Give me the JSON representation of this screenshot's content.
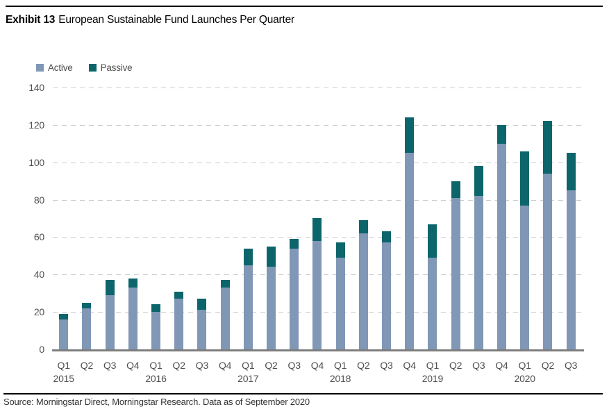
{
  "header": {
    "exhibit_label": "Exhibit 13",
    "title": "European Sustainable Fund Launches Per Quarter"
  },
  "legend": {
    "items": [
      {
        "label": "Active",
        "color": "#8097B5"
      },
      {
        "label": "Passive",
        "color": "#0B656B"
      }
    ]
  },
  "footer": {
    "source": "Source: Morningstar Direct, Morningstar Research. Data as of September 2020"
  },
  "chart_data": {
    "type": "bar",
    "stacked": true,
    "title": "European Sustainable Fund Launches Per Quarter",
    "categories": [
      "Q1",
      "Q2",
      "Q3",
      "Q4",
      "Q1",
      "Q2",
      "Q3",
      "Q4",
      "Q1",
      "Q2",
      "Q3",
      "Q4",
      "Q1",
      "Q2",
      "Q3",
      "Q4",
      "Q1",
      "Q2",
      "Q3",
      "Q4",
      "Q1",
      "Q2",
      "Q3"
    ],
    "year_markers": [
      {
        "label": "2015",
        "bar_index": 0
      },
      {
        "label": "2016",
        "bar_index": 4
      },
      {
        "label": "2017",
        "bar_index": 8
      },
      {
        "label": "2018",
        "bar_index": 12
      },
      {
        "label": "2019",
        "bar_index": 16
      },
      {
        "label": "2020",
        "bar_index": 20
      }
    ],
    "series": [
      {
        "name": "Active",
        "color": "#8097B5",
        "values": [
          16,
          22,
          29,
          33,
          20,
          27,
          21,
          33,
          45,
          44,
          54,
          58,
          49,
          62,
          57,
          105,
          49,
          81,
          82,
          110,
          77,
          94,
          85
        ]
      },
      {
        "name": "Passive",
        "color": "#0B656B",
        "values": [
          3,
          3,
          8,
          5,
          4,
          4,
          6,
          4,
          9,
          11,
          5,
          12,
          8,
          7,
          6,
          19,
          18,
          9,
          16,
          10,
          29,
          28,
          20
        ]
      }
    ],
    "totals": [
      19,
      25,
      37,
      38,
      24,
      31,
      27,
      37,
      54,
      55,
      59,
      70,
      57,
      69,
      63,
      124,
      67,
      90,
      98,
      120,
      106,
      122,
      105
    ],
    "xlabel": "",
    "ylabel": "",
    "ylim": [
      0,
      140
    ],
    "yticks": [
      0,
      20,
      40,
      60,
      80,
      100,
      120,
      140
    ],
    "grid": "horizontal-dashed",
    "legend_position": "top-left",
    "colors": {
      "grid": "#cbcbcb",
      "axis": "#7d7d7d",
      "tick_text": "#4f4f4f"
    }
  }
}
